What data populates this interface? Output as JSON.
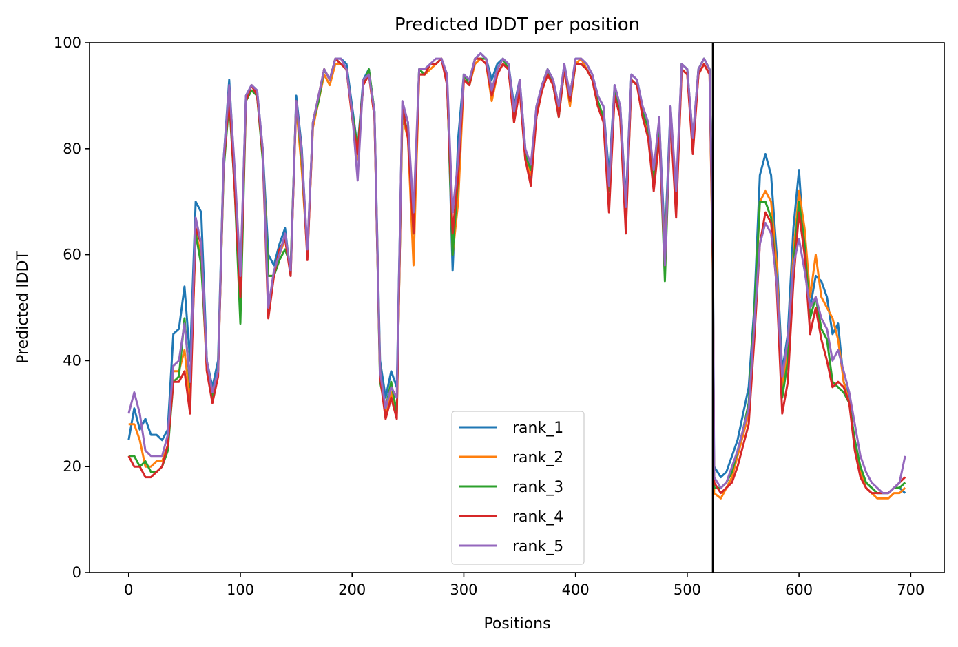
{
  "chart_data": {
    "type": "line",
    "title": "Predicted lDDT per position",
    "xlabel": "Positions",
    "ylabel": "Predicted lDDT",
    "xlim": [
      -35,
      730
    ],
    "ylim": [
      0,
      100
    ],
    "xticks": [
      0,
      100,
      200,
      300,
      400,
      500,
      600,
      700
    ],
    "yticks": [
      0,
      20,
      40,
      60,
      80,
      100
    ],
    "vline": 523,
    "legend_position": "lower-center",
    "colors": {
      "rank_1": "#1f77b4",
      "rank_2": "#ff7f0e",
      "rank_3": "#2ca02c",
      "rank_4": "#d62728",
      "rank_5": "#9467bd",
      "vline": "#000000"
    },
    "x": [
      0,
      5,
      10,
      15,
      20,
      25,
      30,
      35,
      40,
      45,
      50,
      55,
      60,
      65,
      70,
      75,
      80,
      85,
      90,
      95,
      100,
      105,
      110,
      115,
      120,
      125,
      130,
      135,
      140,
      145,
      150,
      155,
      160,
      165,
      170,
      175,
      180,
      185,
      190,
      195,
      200,
      205,
      210,
      215,
      220,
      225,
      230,
      235,
      240,
      245,
      250,
      255,
      260,
      265,
      270,
      275,
      280,
      285,
      290,
      295,
      300,
      305,
      310,
      315,
      320,
      325,
      330,
      335,
      340,
      345,
      350,
      355,
      360,
      365,
      370,
      375,
      380,
      385,
      390,
      395,
      400,
      405,
      410,
      415,
      420,
      425,
      430,
      435,
      440,
      445,
      450,
      455,
      460,
      465,
      470,
      475,
      480,
      485,
      490,
      495,
      500,
      505,
      510,
      515,
      520,
      523,
      524,
      530,
      535,
      540,
      545,
      550,
      555,
      560,
      565,
      570,
      575,
      580,
      585,
      590,
      595,
      600,
      605,
      610,
      615,
      620,
      625,
      630,
      635,
      640,
      645,
      650,
      655,
      660,
      665,
      670,
      675,
      680,
      685,
      690,
      695
    ],
    "series": [
      {
        "name": "rank_1",
        "values": [
          25,
          31,
          27,
          29,
          26,
          26,
          25,
          27,
          45,
          46,
          54,
          40,
          70,
          68,
          40,
          35,
          40,
          78,
          93,
          75,
          55,
          90,
          92,
          91,
          80,
          60,
          58,
          62,
          65,
          56,
          90,
          80,
          60,
          85,
          90,
          95,
          93,
          97,
          97,
          96,
          88,
          80,
          93,
          95,
          87,
          40,
          33,
          38,
          35,
          88,
          85,
          65,
          95,
          95,
          96,
          96,
          97,
          94,
          57,
          82,
          94,
          93,
          97,
          98,
          97,
          93,
          96,
          97,
          96,
          88,
          93,
          80,
          74,
          88,
          92,
          95,
          93,
          88,
          96,
          90,
          97,
          97,
          96,
          94,
          90,
          88,
          75,
          92,
          88,
          70,
          94,
          93,
          88,
          85,
          75,
          85,
          62,
          88,
          70,
          96,
          95,
          82,
          95,
          97,
          95,
          60,
          20,
          18,
          19,
          22,
          25,
          30,
          35,
          50,
          75,
          79,
          75,
          60,
          38,
          45,
          65,
          76,
          60,
          50,
          56,
          55,
          52,
          45,
          47,
          36,
          33,
          24,
          20,
          17,
          16,
          15,
          15,
          15,
          16,
          16,
          15
        ]
      },
      {
        "name": "rank_2",
        "values": [
          28,
          28,
          25,
          20,
          20,
          21,
          21,
          24,
          38,
          38,
          42,
          32,
          64,
          60,
          38,
          34,
          38,
          77,
          90,
          74,
          54,
          89,
          92,
          90,
          79,
          56,
          56,
          60,
          63,
          57,
          88,
          76,
          60,
          84,
          89,
          94,
          92,
          96,
          96,
          95,
          86,
          78,
          92,
          94,
          86,
          38,
          30,
          34,
          30,
          86,
          82,
          58,
          94,
          94,
          95,
          96,
          97,
          93,
          60,
          70,
          93,
          92,
          96,
          97,
          96,
          89,
          94,
          96,
          95,
          85,
          92,
          78,
          75,
          86,
          91,
          94,
          92,
          87,
          95,
          88,
          96,
          97,
          95,
          93,
          88,
          86,
          73,
          90,
          86,
          66,
          93,
          92,
          86,
          83,
          73,
          83,
          60,
          86,
          68,
          95,
          94,
          80,
          94,
          96,
          94,
          55,
          15,
          14,
          16,
          18,
          22,
          26,
          30,
          48,
          70,
          72,
          70,
          58,
          35,
          42,
          60,
          72,
          65,
          52,
          60,
          52,
          50,
          48,
          44,
          36,
          32,
          24,
          19,
          16,
          15,
          14,
          14,
          14,
          15,
          15,
          16
        ]
      },
      {
        "name": "rank_3",
        "values": [
          22,
          22,
          20,
          21,
          19,
          19,
          20,
          23,
          36,
          37,
          48,
          35,
          64,
          58,
          40,
          33,
          38,
          76,
          89,
          72,
          47,
          89,
          91,
          90,
          78,
          56,
          56,
          59,
          61,
          58,
          89,
          78,
          60,
          85,
          89,
          95,
          93,
          97,
          96,
          95,
          87,
          80,
          92,
          95,
          87,
          36,
          31,
          36,
          30,
          87,
          83,
          64,
          95,
          94,
          96,
          96,
          97,
          93,
          60,
          75,
          94,
          92,
          97,
          97,
          97,
          91,
          95,
          97,
          95,
          86,
          92,
          79,
          76,
          87,
          92,
          95,
          92,
          86,
          95,
          89,
          96,
          96,
          95,
          93,
          89,
          86,
          72,
          91,
          87,
          66,
          93,
          92,
          87,
          84,
          74,
          84,
          55,
          87,
          68,
          96,
          95,
          80,
          95,
          97,
          95,
          58,
          16,
          16,
          17,
          19,
          23,
          27,
          32,
          49,
          70,
          70,
          67,
          55,
          33,
          40,
          58,
          70,
          62,
          48,
          52,
          46,
          44,
          36,
          35,
          34,
          32,
          25,
          20,
          17,
          16,
          15,
          15,
          15,
          16,
          16,
          17
        ]
      },
      {
        "name": "rank_4",
        "values": [
          22,
          20,
          20,
          18,
          18,
          19,
          20,
          24,
          36,
          36,
          38,
          30,
          65,
          62,
          38,
          32,
          37,
          77,
          90,
          72,
          52,
          89,
          92,
          90,
          79,
          48,
          56,
          61,
          63,
          56,
          89,
          79,
          59,
          85,
          90,
          95,
          93,
          97,
          96,
          95,
          86,
          79,
          92,
          94,
          86,
          37,
          29,
          33,
          29,
          88,
          82,
          64,
          94,
          94,
          96,
          96,
          97,
          92,
          64,
          75,
          93,
          92,
          97,
          97,
          96,
          90,
          94,
          96,
          95,
          85,
          91,
          78,
          73,
          86,
          91,
          94,
          92,
          86,
          95,
          89,
          96,
          96,
          95,
          93,
          88,
          85,
          68,
          90,
          86,
          64,
          93,
          92,
          86,
          82,
          72,
          82,
          58,
          86,
          67,
          95,
          94,
          79,
          94,
          96,
          94,
          57,
          17,
          15,
          16,
          17,
          20,
          24,
          28,
          44,
          62,
          68,
          66,
          54,
          30,
          36,
          55,
          68,
          60,
          45,
          50,
          44,
          40,
          35,
          36,
          35,
          32,
          23,
          18,
          16,
          15,
          15,
          15,
          15,
          16,
          17,
          18
        ]
      },
      {
        "name": "rank_5",
        "values": [
          30,
          34,
          30,
          23,
          22,
          22,
          22,
          26,
          39,
          40,
          47,
          36,
          67,
          62,
          40,
          34,
          38,
          78,
          92,
          76,
          56,
          90,
          92,
          91,
          80,
          50,
          57,
          60,
          64,
          57,
          89,
          79,
          61,
          85,
          90,
          95,
          93,
          97,
          97,
          95,
          87,
          74,
          93,
          94,
          87,
          38,
          31,
          35,
          33,
          89,
          85,
          68,
          95,
          95,
          96,
          97,
          97,
          94,
          68,
          78,
          94,
          93,
          97,
          98,
          97,
          91,
          95,
          97,
          96,
          87,
          93,
          80,
          77,
          88,
          92,
          95,
          93,
          88,
          96,
          90,
          97,
          97,
          96,
          94,
          90,
          88,
          73,
          92,
          88,
          69,
          94,
          93,
          88,
          85,
          76,
          86,
          58,
          88,
          72,
          96,
          95,
          82,
          95,
          97,
          95,
          60,
          18,
          16,
          17,
          20,
          23,
          27,
          31,
          47,
          62,
          66,
          64,
          55,
          37,
          44,
          58,
          63,
          57,
          50,
          52,
          48,
          46,
          40,
          42,
          38,
          34,
          28,
          22,
          19,
          17,
          16,
          15,
          15,
          16,
          17,
          22
        ]
      }
    ]
  }
}
